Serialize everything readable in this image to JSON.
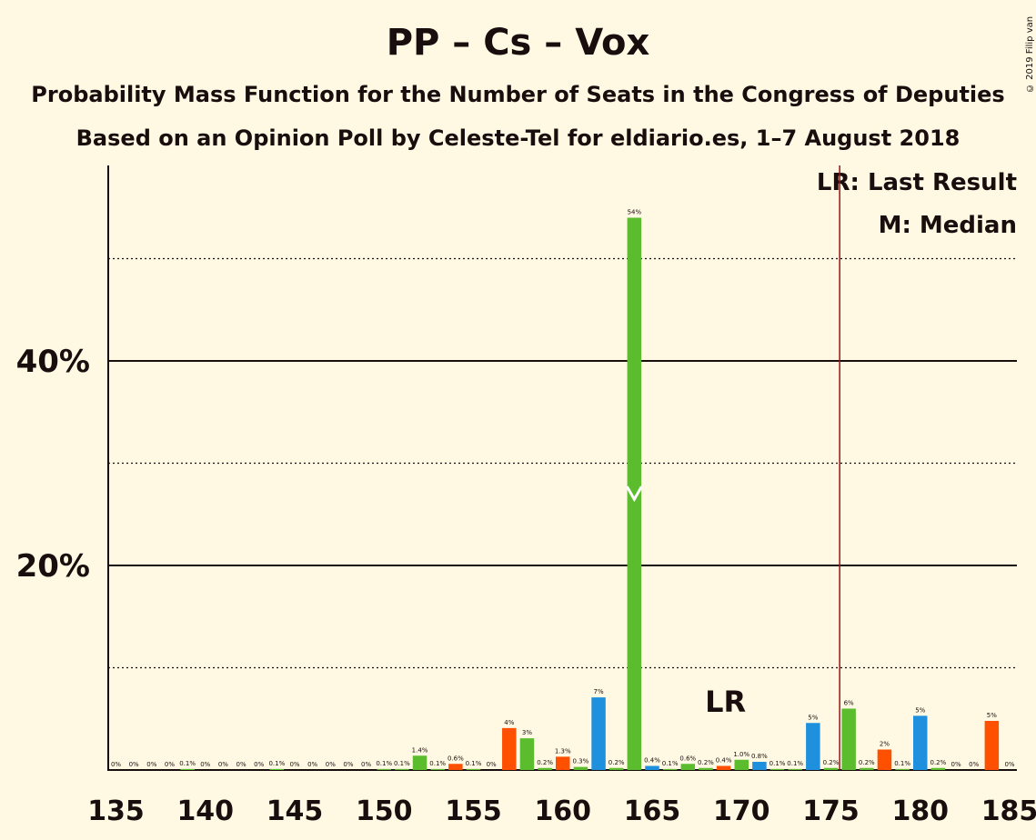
{
  "title": "PP – Cs – Vox",
  "subtitle": "Probability Mass Function for the Number of Seats in the Congress of Deputies",
  "subtitle2": "Based on an Opinion Poll by Celeste-Tel for eldiario.es, 1–7 August 2018",
  "copyright": "© 2019 Filip van Laenen",
  "legend": {
    "lr": "LR: Last Result",
    "median": "M: Median"
  },
  "colors": {
    "background": "#fff8e3",
    "pp": "#1e90dd",
    "cs": "#ff5000",
    "vox": "#5bbd2e",
    "lr_line": "#a01010",
    "text": "#1a0d0d"
  },
  "chart_data": {
    "type": "bar",
    "x": [
      135,
      136,
      137,
      138,
      139,
      140,
      141,
      142,
      143,
      144,
      145,
      146,
      147,
      148,
      149,
      150,
      151,
      152,
      153,
      154,
      155,
      156,
      157,
      158,
      159,
      160,
      161,
      162,
      163,
      164,
      165,
      166,
      167,
      168,
      169,
      170,
      171,
      172,
      173,
      174,
      175,
      176,
      177,
      178,
      179,
      180,
      181,
      182,
      183,
      184,
      185
    ],
    "values": [
      0,
      0,
      0,
      0,
      0.1,
      0,
      0,
      0,
      0,
      0.1,
      0,
      0,
      0,
      0,
      0,
      0.1,
      0.1,
      1.4,
      0.1,
      0.6,
      0.1,
      0,
      4.1,
      3.1,
      0.2,
      1.3,
      0.3,
      7.1,
      0.2,
      54.0,
      0.4,
      0.1,
      0.6,
      0.2,
      0.4,
      1.0,
      0.8,
      0.1,
      0.1,
      4.6,
      0.2,
      6.0,
      0.2,
      2.0,
      0.1,
      5.3,
      0.2,
      0,
      0,
      4.8,
      0
    ],
    "labels": [
      "0%",
      "0%",
      "0%",
      "0%",
      "0.1%",
      "0%",
      "0%",
      "0%",
      "0%",
      "0.1%",
      "0%",
      "0%",
      "0%",
      "0%",
      "0%",
      "0.1%",
      "0.1%",
      "1.4%",
      "0.1%",
      "0.6%",
      "0.1%",
      "0%",
      "4%",
      "3%",
      "0.2%",
      "1.3%",
      "0.3%",
      "7%",
      "0.2%",
      "54%",
      "0.4%",
      "0.1%",
      "0.6%",
      "0.2%",
      "0.4%",
      "1.0%",
      "0.8%",
      "0.1%",
      "0.1%",
      "5%",
      "0.2%",
      "6%",
      "0.2%",
      "2%",
      "0.1%",
      "5%",
      "0.2%",
      "0%",
      "0%",
      "5%",
      "0%"
    ],
    "bar_colors": [
      "vox",
      "vox",
      "vox",
      "vox",
      "vox",
      "vox",
      "vox",
      "vox",
      "vox",
      "vox",
      "vox",
      "vox",
      "vox",
      "vox",
      "vox",
      "vox",
      "vox",
      "vox",
      "vox",
      "cs",
      "vox",
      "vox",
      "cs",
      "vox",
      "vox",
      "cs",
      "vox",
      "pp",
      "vox",
      "vox",
      "pp",
      "vox",
      "vox",
      "vox",
      "cs",
      "vox",
      "pp",
      "vox",
      "vox",
      "pp",
      "vox",
      "vox",
      "vox",
      "cs",
      "vox",
      "pp",
      "vox",
      "vox",
      "vox",
      "cs",
      "vox"
    ],
    "xticks": [
      "135",
      "140",
      "145",
      "150",
      "155",
      "160",
      "165",
      "170",
      "175",
      "180",
      "185"
    ],
    "yticks": [
      "20%",
      "40%"
    ],
    "ylim": [
      0,
      60
    ],
    "solid_gridlines": [
      20,
      40
    ],
    "dotted_gridlines": [
      10,
      30,
      50
    ],
    "last_result": 176,
    "last_result_label": "LR",
    "lr_label_position_x": 169,
    "median": 164
  }
}
